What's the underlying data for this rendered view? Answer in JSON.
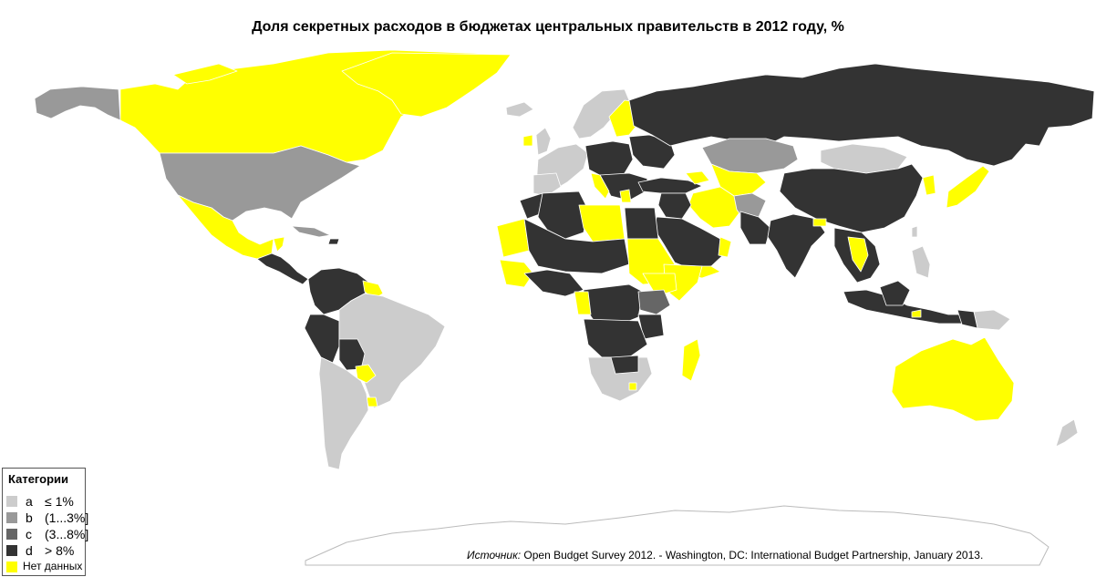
{
  "title": "Доля секретных расходов в бюджетах центральных правительств в 2012 году, %",
  "colors": {
    "a": "#cccccc",
    "b": "#999999",
    "c": "#666666",
    "d": "#333333",
    "no_data": "#ffff00",
    "border": "#ffffff",
    "antarctica": "#ffffff"
  },
  "legend": {
    "title": "Категории",
    "items": [
      {
        "code": "a",
        "range": "≤ 1%",
        "color": "#cccccc"
      },
      {
        "code": "b",
        "range": "(1...3%]",
        "color": "#999999"
      },
      {
        "code": "c",
        "range": "(3...8%]",
        "color": "#666666"
      },
      {
        "code": "d",
        "range": "> 8%",
        "color": "#333333"
      },
      {
        "code": "",
        "range": "Нет данных",
        "color": "#ffff00"
      }
    ]
  },
  "source": {
    "prefix": "Источник:",
    "text": " Open Budget Survey 2012. - Washington, DC: International Budget Partnership, January 2013."
  }
}
